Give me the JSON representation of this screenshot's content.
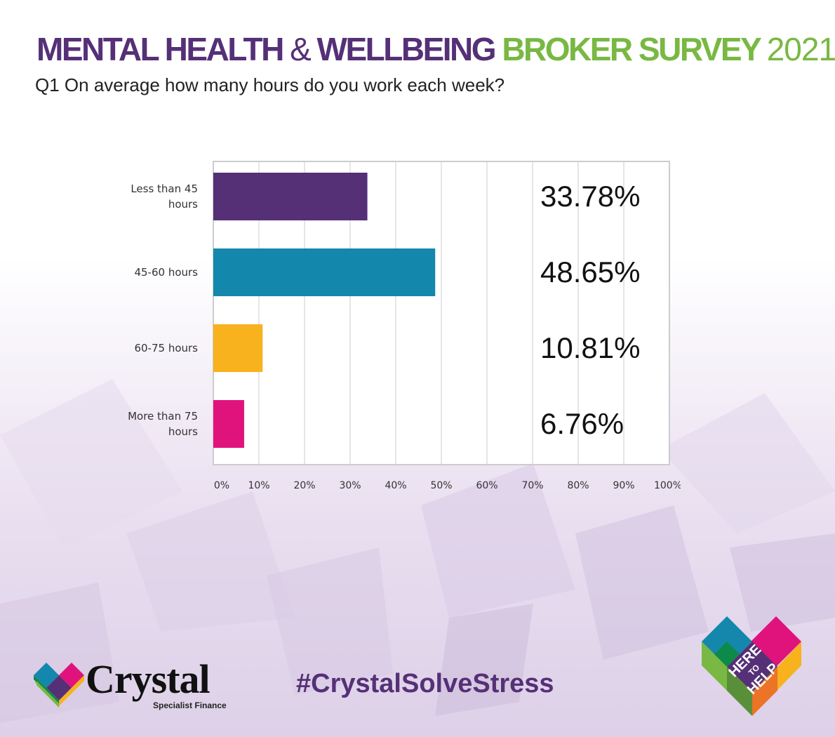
{
  "header": {
    "title_part1": "MENTAL HEALTH",
    "title_amp": "&",
    "title_part2": "WELLBEING",
    "title_part3": "BROKER SURVEY",
    "title_year": "2021",
    "question": "Q1 On average how many hours do you work each week?"
  },
  "chart_data": {
    "type": "bar",
    "orientation": "horizontal",
    "categories": [
      [
        "Less than 45",
        "hours"
      ],
      [
        "45-60 hours"
      ],
      [
        "60-75 hours"
      ],
      [
        "More than 75",
        "hours"
      ]
    ],
    "values": [
      33.78,
      48.65,
      10.81,
      6.76
    ],
    "value_labels": [
      "33.78%",
      "48.65%",
      "10.81%",
      "6.76%"
    ],
    "colors": [
      "#553077",
      "#1487ad",
      "#f7b21d",
      "#e0137c"
    ],
    "xlim": [
      0,
      100
    ],
    "xticks": [
      "0%",
      "10%",
      "20%",
      "30%",
      "40%",
      "50%",
      "60%",
      "70%",
      "80%",
      "90%",
      "100%"
    ],
    "grid": true,
    "legend": "none"
  },
  "footer": {
    "brand_name": "Crystal",
    "brand_sub": "Specialist Finance",
    "hashtag": "#CrystalSolveStress",
    "badge_text": [
      "HERE",
      "TO",
      "HELP"
    ]
  },
  "colors": {
    "purple": "#553077",
    "green": "#78b843",
    "teal": "#1487ad",
    "yellow": "#f7b21d",
    "magenta": "#e0137c"
  }
}
